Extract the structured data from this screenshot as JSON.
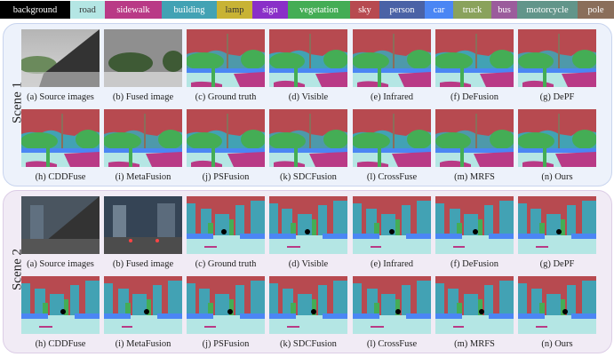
{
  "legend": [
    {
      "label": "background",
      "color": "#000000",
      "text": "#ffffff",
      "w": 79
    },
    {
      "label": "road",
      "color": "#b4e6e4",
      "text": "#333333",
      "w": 39
    },
    {
      "label": "sidewalk",
      "color": "#b93a86",
      "text": "#ffffff",
      "w": 64
    },
    {
      "label": "building",
      "color": "#42a2b4",
      "text": "#ffffff",
      "w": 62
    },
    {
      "label": "lamp",
      "color": "#c8b334",
      "text": "#333333",
      "w": 40
    },
    {
      "label": "sign",
      "color": "#8a2fc8",
      "text": "#ffffff",
      "w": 40
    },
    {
      "label": "vegetation",
      "color": "#44ad55",
      "text": "#ffffff",
      "w": 70
    },
    {
      "label": "sky",
      "color": "#b74a50",
      "text": "#ffffff",
      "w": 33
    },
    {
      "label": "person",
      "color": "#4a62a6",
      "text": "#ffffff",
      "w": 51
    },
    {
      "label": "car",
      "color": "#4b86f4",
      "text": "#ffffff",
      "w": 32
    },
    {
      "label": "truck",
      "color": "#8aa25c",
      "text": "#ffffff",
      "w": 43
    },
    {
      "label": "bus",
      "color": "#9b5c9c",
      "text": "#ffffff",
      "w": 29
    },
    {
      "label": "motorcycle",
      "color": "#62958a",
      "text": "#ffffff",
      "w": 68
    },
    {
      "label": "pole",
      "color": "#8a6e5a",
      "text": "#ffffff",
      "w": 41
    }
  ],
  "scenes": [
    {
      "label": "Scene 1",
      "rows": [
        [
          "(a) Source images",
          "(b) Fused image",
          "(c) Ground truth",
          "(d) Visible",
          "(e) Infrared",
          "(f) DeFusion",
          "(g) DePF"
        ],
        [
          "(h) CDDFuse",
          "(i) MetaFusion",
          "(j) PSFusion",
          "(k) SDCFusion",
          "(l) CrossFuse",
          "(m) MRFS",
          "(n) Ours"
        ]
      ]
    },
    {
      "label": "Scene 2",
      "rows": [
        [
          "(a) Source images",
          "(b) Fused image",
          "(c) Ground truth",
          "(d) Visible",
          "(e) Infrared",
          "(f) DeFusion",
          "(g) DePF"
        ],
        [
          "(h) CDDFuse",
          "(i) MetaFusion",
          "(j) PSFusion",
          "(k) SDCFusion",
          "(l) CrossFuse",
          "(m) MRFS",
          "(n) Ours"
        ]
      ]
    }
  ]
}
